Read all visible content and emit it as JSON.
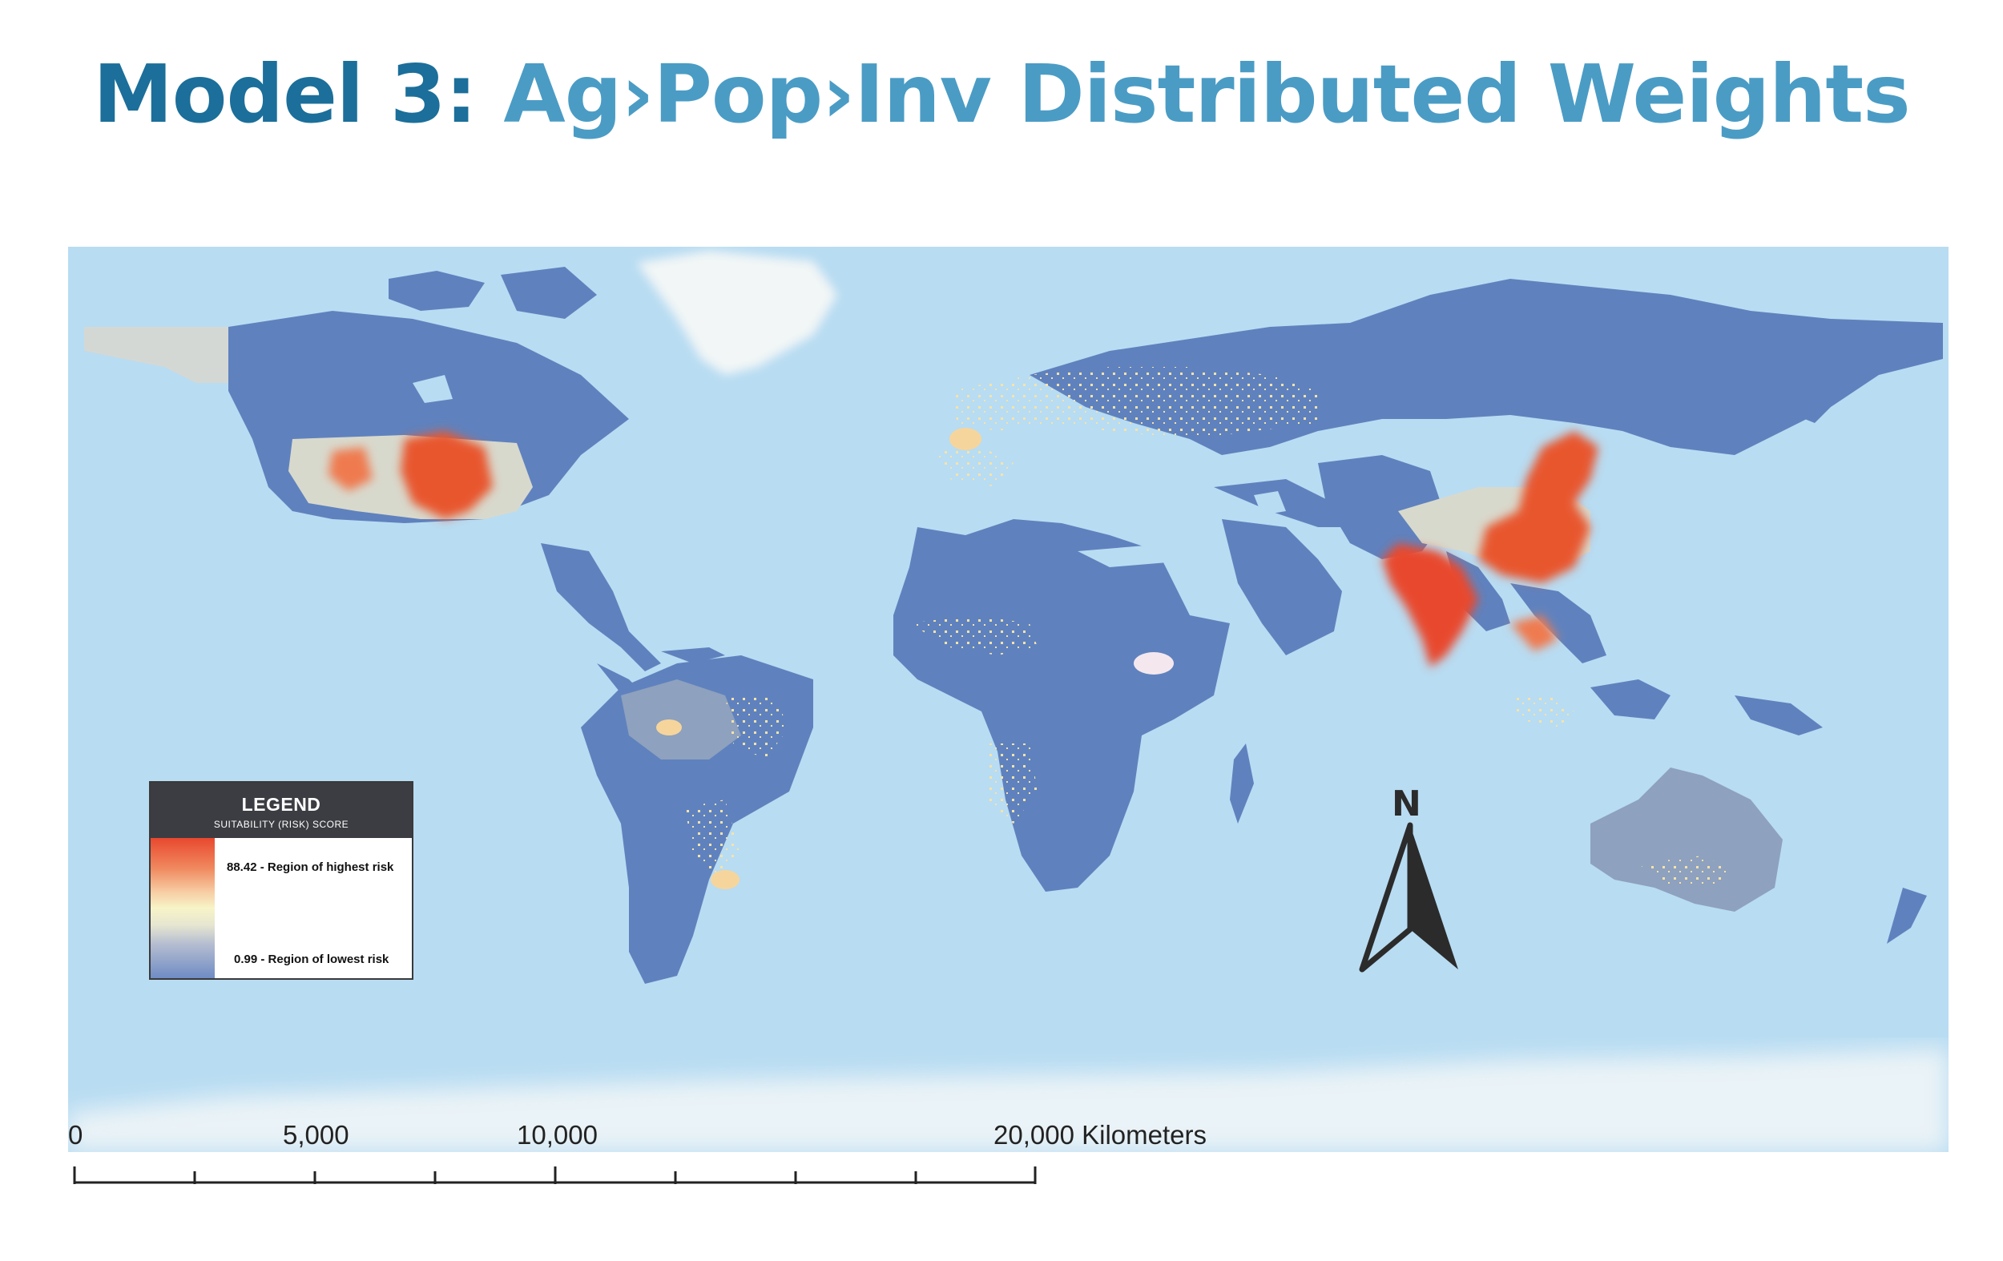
{
  "title": {
    "model": "Model 3:",
    "rest": "Ag›Pop›Inv Distributed Weights"
  },
  "legend": {
    "title": "LEGEND",
    "subtitle": "SUITABILITY (RISK) SCORE",
    "high_label": "88.42 - Region of highest risk",
    "low_label": "0.99 - Region of lowest risk",
    "high_value": 88.42,
    "low_value": 0.99,
    "colors": [
      "#e8482e",
      "#f08a60",
      "#f7f4c8",
      "#b4bcd0",
      "#6f8cc4"
    ]
  },
  "north_arrow": {
    "label": "N"
  },
  "scale_bar": {
    "labels": [
      "0",
      "5,000",
      "10,000",
      "20,000 Kilometers"
    ]
  },
  "colors": {
    "ocean": "#b8dcf2",
    "land_low_risk": "#5f82be",
    "high_risk": "#e8482e",
    "medium_risk": "#f7e3a8",
    "title_dark": "#1b6f9a",
    "title_light": "#4a9cc5"
  }
}
